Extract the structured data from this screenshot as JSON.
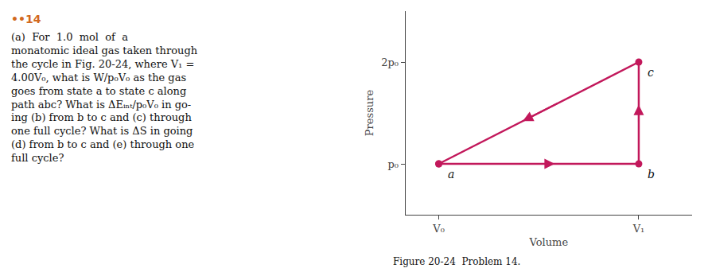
{
  "chart_data": {
    "type": "line",
    "x": [
      1,
      4,
      4,
      1
    ],
    "values": [
      1,
      1,
      2,
      1
    ],
    "color": "#c2185b",
    "marker": "circle",
    "xlabel": "Volume",
    "ylabel": "Pressure",
    "xlim": [
      0.5,
      4.8
    ],
    "ylim": [
      0.5,
      2.5
    ],
    "xticks": [
      {
        "value": 1,
        "label": "V₀"
      },
      {
        "value": 4,
        "label": "V₁"
      }
    ],
    "yticks": [
      {
        "value": 1,
        "label": "p₀"
      },
      {
        "value": 2,
        "label": "2p₀"
      }
    ],
    "grid": false,
    "annotations": [
      {
        "text": "a",
        "x": 1,
        "y": 1
      },
      {
        "text": "b",
        "x": 4,
        "y": 1
      },
      {
        "text": "c",
        "x": 4,
        "y": 2
      }
    ],
    "text_panel": {
      "heading": "••14",
      "color": "#d2691e",
      "lines": [
        "(a)  For  1.0  mol  of  a",
        "monatomic ideal gas taken through",
        "the cycle in Fig. 20-24, where V₁ =",
        "4.00V₀, what is W/p₀V₀ as the gas",
        "goes from state a to state c along",
        "path abc? What is ΔEᵢₙₜ/p₀V₀ in go-",
        "ing (b) from b to c and (c) through",
        "one full cycle? What is ΔS in going",
        "(d) from b to c and (e) through one",
        "full cycle?"
      ]
    },
    "caption": "Figure 20-24  Problem 14."
  }
}
